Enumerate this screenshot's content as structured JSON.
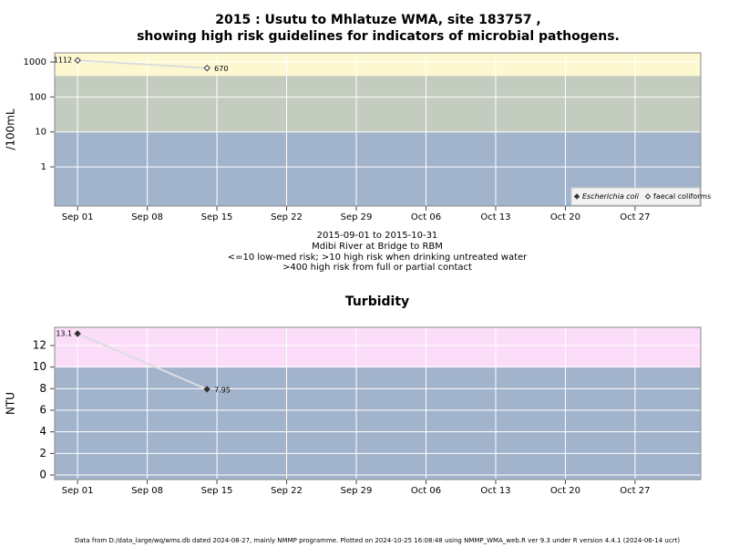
{
  "chart_data": [
    {
      "type": "line",
      "title": "2015 : Usutu to Mhlatuze WMA, site 183757 ,",
      "subtitle": "showing high risk guidelines for indicators of microbial pathogens.",
      "ylabel": "/100mL",
      "notes": [
        "2015-09-01 to 2015-10-31",
        "Mdibi River at Bridge to RBM",
        "<=10 low-med risk; >10 high risk when drinking untreated water",
        ">400 high risk from full or partial contact"
      ],
      "log_scale": true,
      "grid": true,
      "legend": "bottom-right",
      "line_color": "#dddddd",
      "x": [
        1,
        14
      ],
      "xlim": [
        -1.3,
        63.6
      ],
      "xticks": [
        {
          "value": 1,
          "label": "Sep 01"
        },
        {
          "value": 8,
          "label": "Sep 08"
        },
        {
          "value": 15,
          "label": "Sep 15"
        },
        {
          "value": 22,
          "label": "Sep 22"
        },
        {
          "value": 29,
          "label": "Sep 29"
        },
        {
          "value": 36,
          "label": "Oct 06"
        },
        {
          "value": 43,
          "label": "Oct 13"
        },
        {
          "value": 50,
          "label": "Oct 20"
        },
        {
          "value": 57,
          "label": "Oct 27"
        }
      ],
      "ylim": [
        0.076,
        1820
      ],
      "yticks": [
        1,
        10,
        100,
        1000
      ],
      "bands": [
        {
          "from": 0.076,
          "to": 10,
          "color": "#a2b3cc"
        },
        {
          "from": 10,
          "to": 400,
          "color": "#c3ccbf"
        },
        {
          "from": 400,
          "to": 1820,
          "color": "#fdf8cf"
        }
      ],
      "series": [
        {
          "name": "Escherichia coli",
          "color": "#333333",
          "marker": "filled",
          "values": [
            null,
            null
          ]
        },
        {
          "name": "faecal coliforms",
          "color": "#333333",
          "marker": "open",
          "values": [
            1112,
            670
          ]
        }
      ]
    },
    {
      "type": "line",
      "title": "Turbidity",
      "ylabel": "NTU",
      "log_scale": false,
      "grid": true,
      "line_color": "#dddddd",
      "x": [
        1,
        14
      ],
      "xlim": [
        -1.3,
        63.6
      ],
      "xticks": [
        {
          "value": 1,
          "label": "Sep 01"
        },
        {
          "value": 8,
          "label": "Sep 08"
        },
        {
          "value": 15,
          "label": "Sep 15"
        },
        {
          "value": 22,
          "label": "Sep 22"
        },
        {
          "value": 29,
          "label": "Sep 29"
        },
        {
          "value": 36,
          "label": "Oct 06"
        },
        {
          "value": 43,
          "label": "Oct 13"
        },
        {
          "value": 50,
          "label": "Oct 20"
        },
        {
          "value": 57,
          "label": "Oct 27"
        }
      ],
      "ylim": [
        -0.42,
        13.69
      ],
      "yticks": [
        0,
        2,
        4,
        6,
        8,
        10,
        12
      ],
      "bands": [
        {
          "from": -0.42,
          "to": 10,
          "color": "#a2b3cc"
        },
        {
          "from": 10,
          "to": 13.69,
          "color": "#fbdcf9"
        }
      ],
      "color": "#333333",
      "marker": "filled",
      "values": [
        13.1,
        7.95
      ]
    }
  ],
  "footer": "Data from D:/data_large/wq/wms.db dated 2024-08-27, mainly NMMP programme. Plotted on 2024-10-25 16:08:48 using NMMP_WMA_web.R ver 9.3 under R version 4.4.1 (2024-06-14 ucrt)"
}
